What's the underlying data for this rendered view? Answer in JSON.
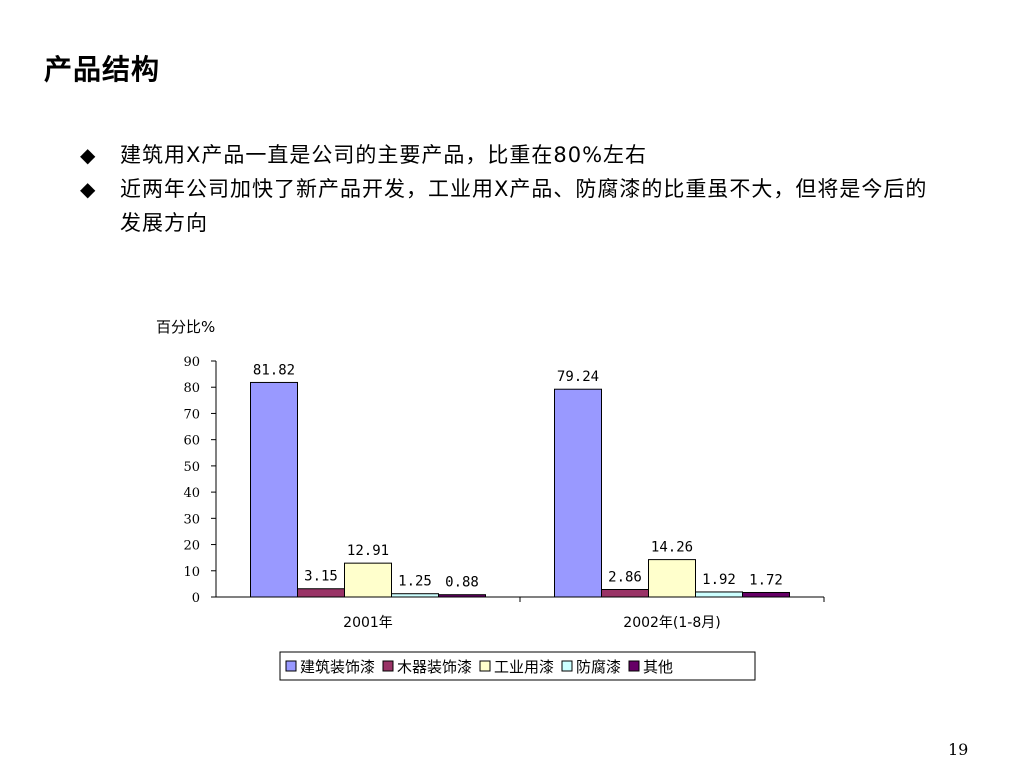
{
  "slide": {
    "title": "产品结构",
    "bullets": [
      "建筑用X产品一直是公司的主要产品，比重在80%左右",
      "近两年公司加快了新产品开发，工业用X产品、防腐漆的比重虽不大，但将是今后的发展方向"
    ],
    "bullet_marker": "◆",
    "page_number": "19"
  },
  "chart_data": {
    "type": "bar",
    "ylabel": "百分比%",
    "xlabel": "",
    "title": "",
    "categories": [
      "2001年",
      "2002年(1-8月)"
    ],
    "ylim": [
      0,
      90
    ],
    "yticks": [
      0,
      10,
      20,
      30,
      40,
      50,
      60,
      70,
      80,
      90
    ],
    "legend_position": "bottom",
    "grid": false,
    "series": [
      {
        "name": "建筑装饰漆",
        "color": "#9999FF",
        "values": [
          81.82,
          79.24
        ],
        "labels": [
          "81.82",
          "79.24"
        ]
      },
      {
        "name": "木器装饰漆",
        "color": "#993366",
        "values": [
          3.15,
          2.86
        ],
        "labels": [
          "3.15",
          "2.86"
        ]
      },
      {
        "name": "工业用漆",
        "color": "#FFFFCC",
        "values": [
          12.91,
          14.26
        ],
        "labels": [
          "12.91",
          "14.26"
        ]
      },
      {
        "name": "防腐漆",
        "color": "#CCFFFF",
        "values": [
          1.25,
          1.92
        ],
        "labels": [
          "1.25",
          "1.92"
        ]
      },
      {
        "name": "其他",
        "color": "#660066",
        "values": [
          0.88,
          1.72
        ],
        "labels": [
          "0.88",
          "1.72"
        ]
      }
    ]
  }
}
